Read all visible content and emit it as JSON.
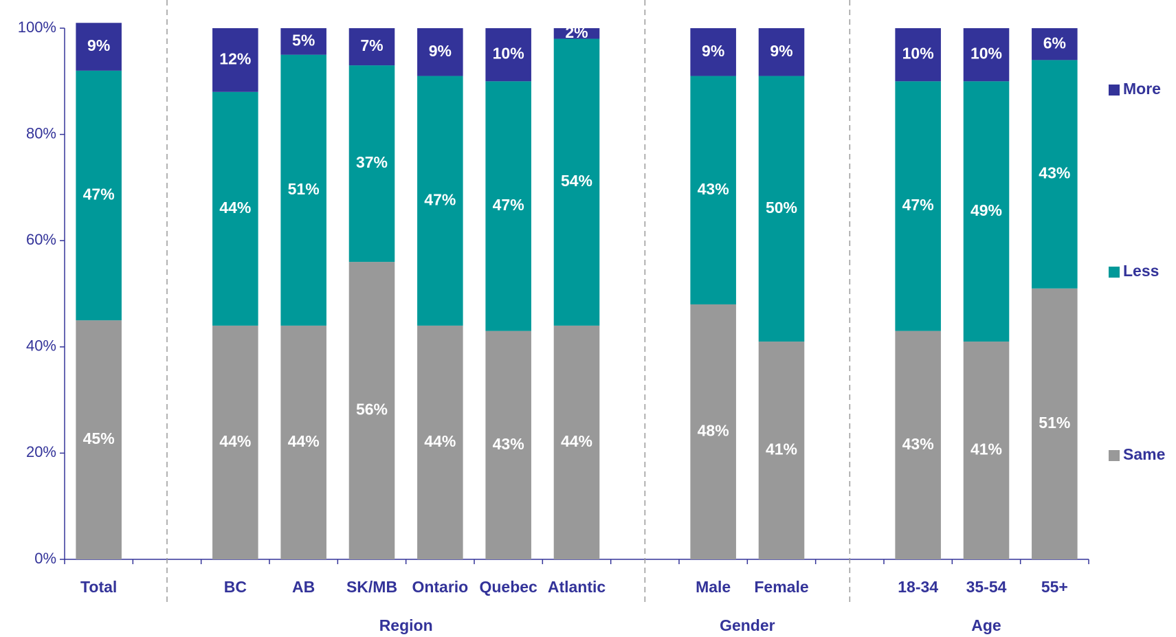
{
  "chart_data": {
    "type": "stacked_bar",
    "categories": [
      "Total",
      null,
      "BC",
      "AB",
      "SK/MB",
      "Ontario",
      "Quebec",
      "Atlantic",
      null,
      "Male",
      "Female",
      null,
      "18-34",
      "35-54",
      "55+"
    ],
    "groups": [
      "Region",
      "Gender",
      "Age"
    ],
    "series": [
      {
        "name": "Same",
        "color": "#999999",
        "values": [
          45,
          null,
          44,
          44,
          56,
          44,
          43,
          44,
          null,
          48,
          41,
          null,
          43,
          41,
          51
        ],
        "value_labels": [
          "45%",
          null,
          "44%",
          "44%",
          "56%",
          "44%",
          "43%",
          "44%",
          null,
          "48%",
          "41%",
          null,
          "43%",
          "41%",
          "51%"
        ]
      },
      {
        "name": "Less",
        "color": "#009999",
        "values": [
          47,
          null,
          44,
          51,
          37,
          47,
          47,
          54,
          null,
          43,
          50,
          null,
          47,
          49,
          43
        ],
        "value_labels": [
          "47%",
          null,
          "44%",
          "51%",
          "37%",
          "47%",
          "47%",
          "54%",
          null,
          "43%",
          "50%",
          null,
          "47%",
          "49%",
          "43%"
        ]
      },
      {
        "name": "More",
        "color": "#333399",
        "values": [
          9,
          null,
          12,
          5,
          7,
          9,
          10,
          2,
          null,
          9,
          9,
          null,
          10,
          10,
          6
        ],
        "value_labels": [
          "9%",
          null,
          "12%",
          "5%",
          "7%",
          "9%",
          "10%",
          "2%",
          null,
          "9%",
          "9%",
          null,
          "10%",
          "10%",
          "6%"
        ]
      }
    ],
    "ylim": [
      0,
      100
    ],
    "yticks": [
      {
        "value": 0,
        "label": "0%"
      },
      {
        "value": 20,
        "label": "20%"
      },
      {
        "value": 40,
        "label": "40%"
      },
      {
        "value": 60,
        "label": "60%"
      },
      {
        "value": 80,
        "label": "80%"
      },
      {
        "value": 100,
        "label": "100%"
      }
    ],
    "legend": "right"
  }
}
